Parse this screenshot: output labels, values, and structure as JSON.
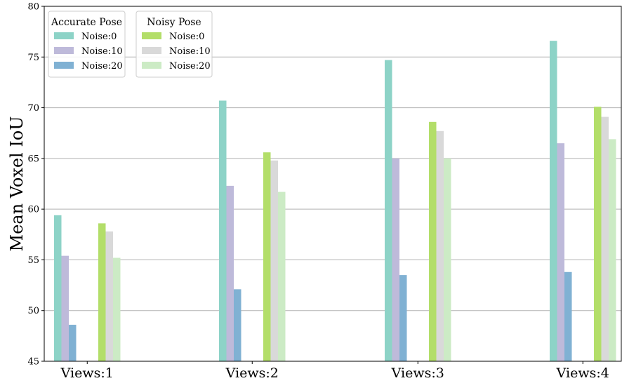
{
  "chart_data": {
    "type": "bar",
    "categories": [
      "Views:1",
      "Views:2",
      "Views:3",
      "Views:4"
    ],
    "ylabel": "Mean Voxel IoU",
    "xlabel": "",
    "ylim": [
      45,
      80
    ],
    "yticks": [
      45,
      50,
      55,
      60,
      65,
      70,
      75,
      80
    ],
    "grid": "horizontal",
    "legend_groups": [
      {
        "title": "Accurate Pose",
        "series_indices": [
          0,
          1,
          2
        ]
      },
      {
        "title": "Noisy Pose",
        "series_indices": [
          3,
          4,
          5
        ]
      }
    ],
    "series": [
      {
        "name": "Noise:0",
        "group": "Accurate Pose",
        "color": "#8dd3c7",
        "values": [
          59.4,
          70.7,
          74.7,
          76.6
        ]
      },
      {
        "name": "Noise:10",
        "group": "Accurate Pose",
        "color": "#bebada",
        "values": [
          55.4,
          62.3,
          65.0,
          66.5
        ]
      },
      {
        "name": "Noise:20",
        "group": "Accurate Pose",
        "color": "#80b1d3",
        "values": [
          48.6,
          52.1,
          53.5,
          53.8
        ]
      },
      {
        "name": "Noise:0",
        "group": "Noisy Pose",
        "color": "#b3de69",
        "values": [
          58.6,
          65.6,
          68.6,
          70.1
        ]
      },
      {
        "name": "Noise:10",
        "group": "Noisy Pose",
        "color": "#d9d9d9",
        "values": [
          57.8,
          64.8,
          67.7,
          69.1
        ]
      },
      {
        "name": "Noise:20",
        "group": "Noisy Pose",
        "color": "#ccebc5",
        "values": [
          55.2,
          61.7,
          65.0,
          66.9
        ]
      }
    ]
  }
}
